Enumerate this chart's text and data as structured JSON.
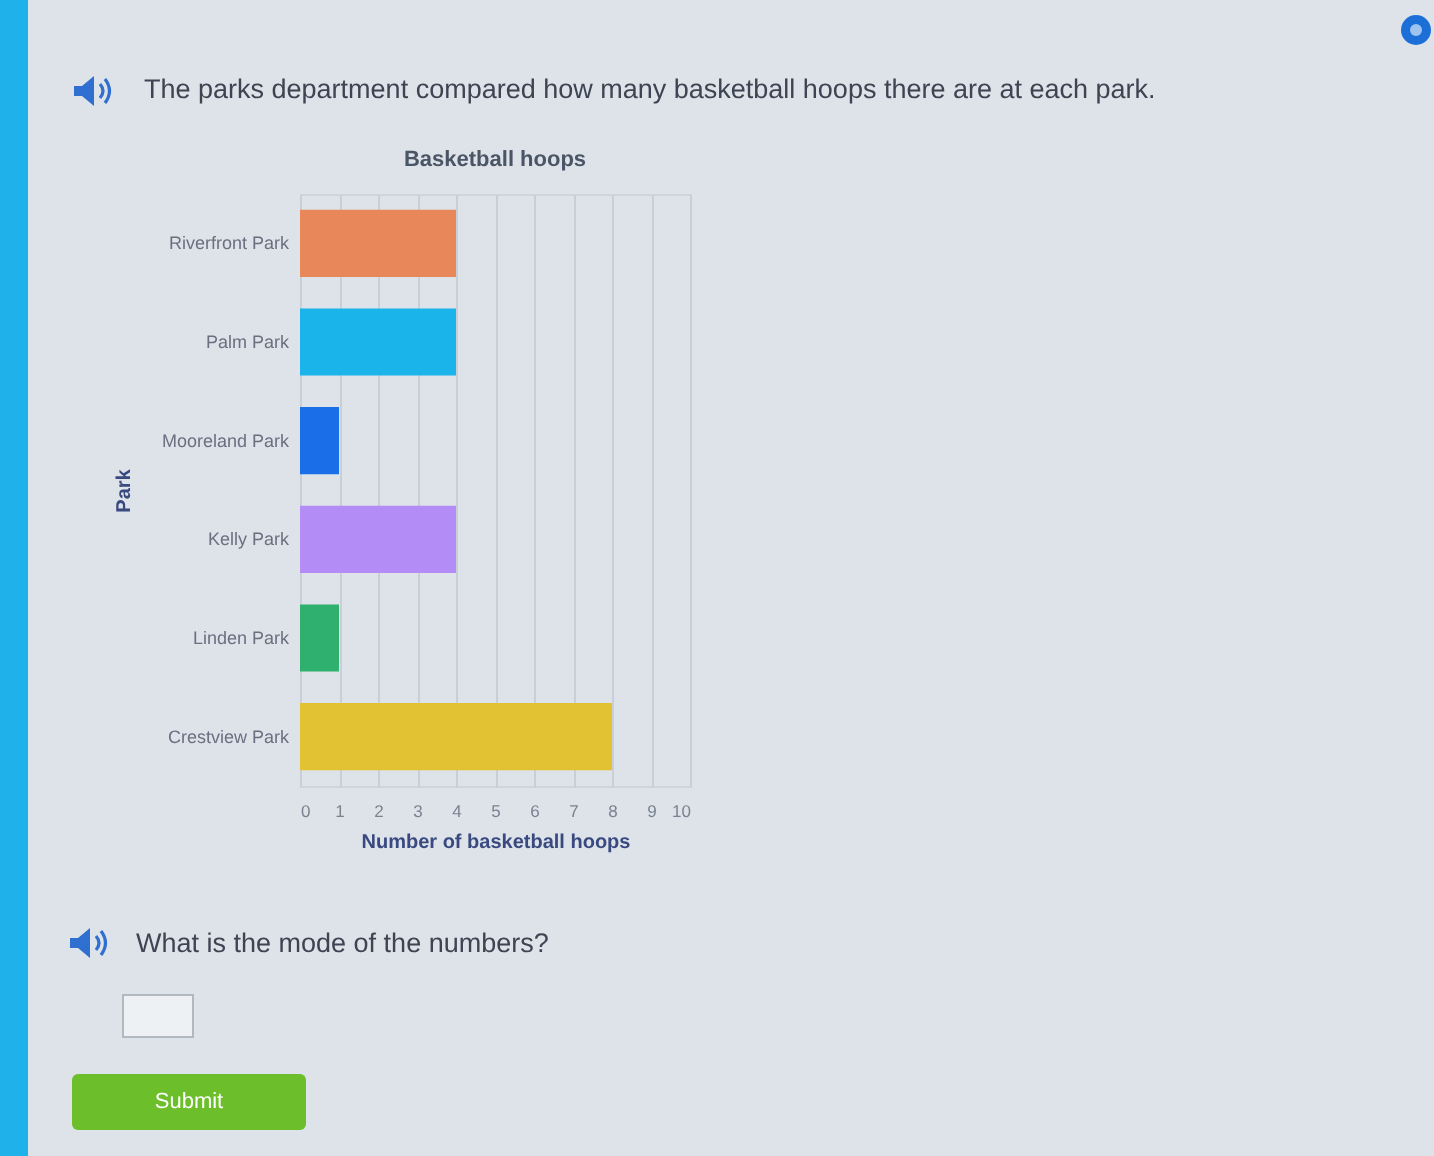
{
  "chart_data": {
    "type": "bar",
    "orientation": "horizontal",
    "title": "Basketball hoops",
    "xlabel": "Number of basketball hoops",
    "ylabel": "Park",
    "categories": [
      "Riverfront Park",
      "Palm Park",
      "Mooreland Park",
      "Kelly Park",
      "Linden Park",
      "Crestview Park"
    ],
    "values": [
      4,
      4,
      1,
      4,
      1,
      8
    ],
    "colors": [
      "#e8875a",
      "#1ab4ea",
      "#1a6fe8",
      "#b48cf5",
      "#2fb06f",
      "#e2c232"
    ],
    "xlim": [
      0,
      10
    ],
    "xticks": [
      0,
      1,
      2,
      3,
      4,
      5,
      6,
      7,
      8,
      9,
      10
    ],
    "grid": "x",
    "annotations": [
      "The parks department compared how many basketball hoops there are at each park.",
      "What is the mode of the numbers?",
      "Submit"
    ]
  }
}
